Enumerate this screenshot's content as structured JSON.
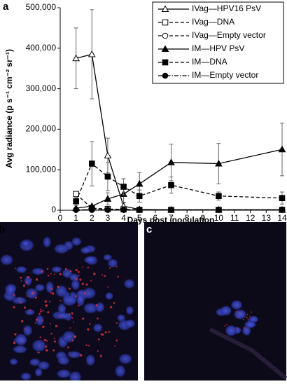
{
  "panels": {
    "a": "a",
    "b": "b",
    "c": "c"
  },
  "chart_data": {
    "type": "line",
    "xlabel": "Days post inoculation",
    "ylabel": "Avg radiance (p s⁻¹ cm⁻² sr⁻¹)",
    "x": [
      1,
      2,
      3,
      4,
      5,
      7,
      10,
      14
    ],
    "xlim": [
      0,
      14
    ],
    "xticks": [
      0,
      1,
      2,
      3,
      4,
      5,
      6,
      7,
      8,
      9,
      10,
      11,
      12,
      13,
      14
    ],
    "ylim": [
      0,
      500000
    ],
    "yticks": [
      0,
      {
        "value": 100000,
        "label": "100,000"
      },
      {
        "value": 200000,
        "label": "200,000"
      },
      {
        "value": 300000,
        "label": "300,000"
      },
      {
        "value": 400000,
        "label": "400,000"
      },
      {
        "value": 500000,
        "label": "500,000"
      }
    ],
    "legend": "top-right",
    "series": [
      {
        "name": "IVag—HPV16 PsV",
        "color": "#000000",
        "marker": "triangle",
        "filled": false,
        "dash": "solid",
        "values": [
          375000,
          385000,
          135000,
          10000,
          2000,
          1000,
          1000,
          1000
        ],
        "errors": [
          75000,
          110000,
          43000,
          8000,
          null,
          null,
          null,
          null
        ]
      },
      {
        "name": "IVag—DNA",
        "color": "#000000",
        "marker": "square",
        "filled": false,
        "dash": "dashed",
        "values": [
          40000,
          5000,
          3000,
          2000,
          1000,
          1000,
          1000,
          1000
        ],
        "errors": [
          null,
          null,
          null,
          null,
          null,
          null,
          null,
          null
        ]
      },
      {
        "name": "IVag—Empty vector",
        "color": "#000000",
        "marker": "circle",
        "filled": false,
        "dash": "dashed",
        "values": [
          1000,
          1000,
          1000,
          1000,
          1000,
          1000,
          1000,
          1000
        ],
        "errors": [
          null,
          null,
          null,
          null,
          null,
          null,
          null,
          null
        ]
      },
      {
        "name": "IM—HPV PsV",
        "color": "#000000",
        "marker": "triangle",
        "filled": true,
        "dash": "solid",
        "values": [
          5000,
          10000,
          28000,
          40000,
          65000,
          118000,
          115000,
          150000
        ],
        "errors": [
          null,
          null,
          15000,
          20000,
          28000,
          45000,
          50000,
          65000
        ]
      },
      {
        "name": "IM—DNA",
        "color": "#000000",
        "marker": "square",
        "filled": true,
        "dash": "dashed",
        "values": [
          22000,
          115000,
          83000,
          58000,
          35000,
          62000,
          35000,
          30000
        ],
        "errors": [
          10000,
          55000,
          35000,
          20000,
          15000,
          20000,
          10000,
          15000
        ]
      },
      {
        "name": "IM—Empty vector",
        "color": "#000000",
        "marker": "circle",
        "filled": true,
        "dash": "dashdot",
        "values": [
          1000,
          1000,
          1000,
          1000,
          1000,
          1000,
          1000,
          1000
        ],
        "errors": [
          null,
          null,
          null,
          null,
          null,
          null,
          null,
          null
        ]
      }
    ]
  }
}
